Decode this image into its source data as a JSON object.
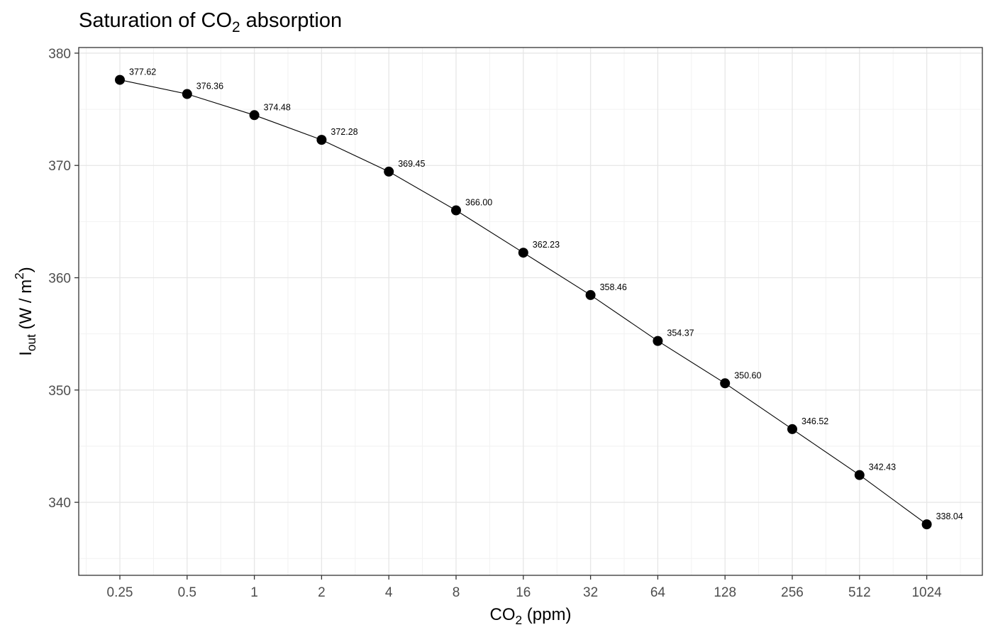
{
  "chart_data": {
    "type": "line",
    "title_main": "Saturation of CO",
    "title_sub": "2",
    "title_rest": " absorption",
    "xlabel_main": "CO",
    "xlabel_sub": "2",
    "xlabel_rest": " (ppm)",
    "ylabel_main": "I",
    "ylabel_sub": "out",
    "ylabel_mid": " (W / m",
    "ylabel_sup": "2",
    "ylabel_end": ")",
    "x_scale": "log2",
    "x_tick_labels": [
      "0.25",
      "0.5",
      "1",
      "2",
      "4",
      "8",
      "16",
      "32",
      "64",
      "128",
      "256",
      "512",
      "1024"
    ],
    "y_tick_labels": [
      "340",
      "350",
      "360",
      "370",
      "380"
    ],
    "ylim": [
      333.5,
      380.5
    ],
    "x": [
      0.25,
      0.5,
      1,
      2,
      4,
      8,
      16,
      32,
      64,
      128,
      256,
      512,
      1024
    ],
    "y": [
      377.62,
      376.36,
      374.48,
      372.28,
      369.45,
      366.0,
      362.23,
      358.46,
      354.37,
      350.6,
      346.52,
      342.43,
      338.04
    ],
    "data_labels": [
      "377.62",
      "376.36",
      "374.48",
      "372.28",
      "369.45",
      "366.00",
      "362.23",
      "358.46",
      "354.37",
      "350.60",
      "346.52",
      "342.43",
      "338.04"
    ],
    "grid": true,
    "marker_color": "#000000",
    "line_color": "#000000"
  }
}
